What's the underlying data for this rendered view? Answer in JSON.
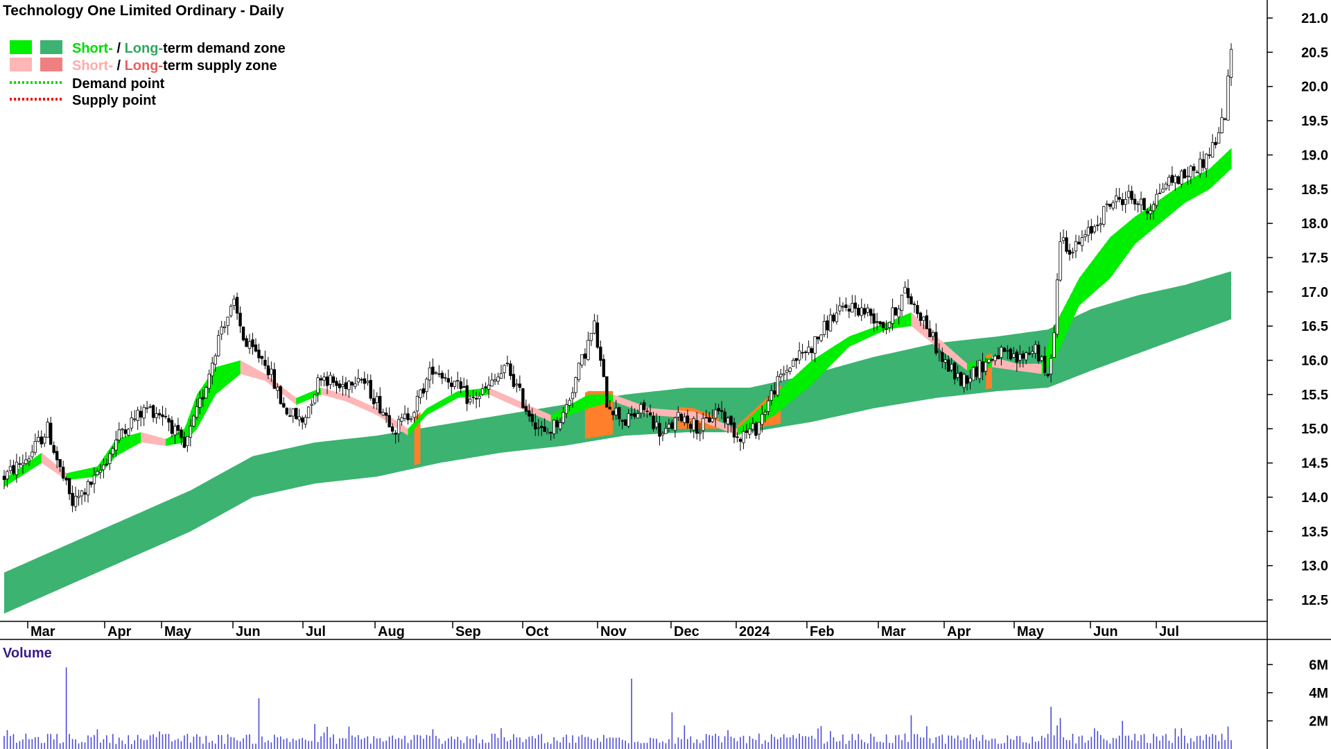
{
  "title": "Technology One Limited Ordinary - Daily",
  "legend": {
    "demand_zone": {
      "short": "Short-",
      "sep": " / ",
      "long": "Long-",
      "rest": "term demand zone"
    },
    "supply_zone": {
      "short": "Short-",
      "sep": " / ",
      "long": "Long-",
      "rest": "term supply zone"
    },
    "demand_point": "Demand point",
    "supply_point": "Supply point"
  },
  "colors": {
    "short_demand": "#00ee00",
    "long_demand": "#3cb371",
    "short_supply": "#ffb6b6",
    "long_supply": "#f08080",
    "supply_fill": "#ff7f2a",
    "volume_bar": "#4b4bd6",
    "demand_point": "#00dd00",
    "supply_point": "#ee0000"
  },
  "chart_data": {
    "type": "candlestick",
    "price_axis": {
      "min": 12.1,
      "max": 21.2,
      "ticks": [
        "21.0",
        "20.5",
        "20.0",
        "19.5",
        "19.0",
        "18.5",
        "18.0",
        "17.5",
        "17.0",
        "16.5",
        "16.0",
        "15.5",
        "15.0",
        "14.5",
        "14.0",
        "13.5",
        "13.0",
        "12.5"
      ]
    },
    "month_labels": [
      "Mar",
      "Apr",
      "May",
      "Jun",
      "Jul",
      "Aug",
      "Sep",
      "Oct",
      "Nov",
      "Dec",
      "2024",
      "Feb",
      "Mar",
      "Apr",
      "May",
      "Jun",
      "Jul"
    ],
    "volume_label": "Volume",
    "volume_axis": {
      "max": 7.0,
      "ticks": [
        "6M",
        "4M",
        "2M"
      ]
    },
    "price_anchors": [
      [
        0,
        14.3
      ],
      [
        8,
        14.6
      ],
      [
        14,
        15.0
      ],
      [
        18,
        14.4
      ],
      [
        22,
        13.9
      ],
      [
        30,
        14.3
      ],
      [
        38,
        15.0
      ],
      [
        46,
        15.3
      ],
      [
        52,
        15.2
      ],
      [
        58,
        14.7
      ],
      [
        64,
        15.5
      ],
      [
        70,
        16.5
      ],
      [
        74,
        16.8
      ],
      [
        78,
        16.2
      ],
      [
        84,
        16.0
      ],
      [
        90,
        15.3
      ],
      [
        96,
        15.1
      ],
      [
        102,
        15.8
      ],
      [
        108,
        15.6
      ],
      [
        114,
        15.8
      ],
      [
        120,
        15.4
      ],
      [
        126,
        15.0
      ],
      [
        132,
        15.3
      ],
      [
        138,
        15.9
      ],
      [
        144,
        15.7
      ],
      [
        150,
        15.4
      ],
      [
        156,
        15.6
      ],
      [
        162,
        15.9
      ],
      [
        168,
        15.3
      ],
      [
        174,
        14.9
      ],
      [
        180,
        15.2
      ],
      [
        186,
        16.0
      ],
      [
        190,
        16.5
      ],
      [
        194,
        15.4
      ],
      [
        200,
        15.1
      ],
      [
        206,
        15.3
      ],
      [
        212,
        14.9
      ],
      [
        218,
        15.2
      ],
      [
        224,
        15.0
      ],
      [
        230,
        15.3
      ],
      [
        236,
        14.9
      ],
      [
        242,
        15.0
      ],
      [
        248,
        15.6
      ],
      [
        254,
        16.0
      ],
      [
        260,
        16.2
      ],
      [
        266,
        16.6
      ],
      [
        272,
        16.8
      ],
      [
        278,
        16.7
      ],
      [
        284,
        16.5
      ],
      [
        290,
        17.0
      ],
      [
        296,
        16.6
      ],
      [
        302,
        16.0
      ],
      [
        308,
        15.7
      ],
      [
        314,
        15.9
      ],
      [
        320,
        16.1
      ],
      [
        326,
        16.0
      ],
      [
        332,
        16.2
      ],
      [
        336,
        15.7
      ],
      [
        338,
        16.5
      ],
      [
        340,
        17.8
      ],
      [
        344,
        17.6
      ],
      [
        350,
        17.9
      ],
      [
        356,
        18.3
      ],
      [
        362,
        18.4
      ],
      [
        368,
        18.2
      ],
      [
        374,
        18.6
      ],
      [
        380,
        18.7
      ],
      [
        386,
        18.9
      ],
      [
        390,
        19.2
      ],
      [
        393,
        19.6
      ],
      [
        395,
        20.5
      ]
    ],
    "short_demand_band": [
      [
        0,
        14.27,
        14.15
      ],
      [
        12,
        14.65,
        14.5
      ],
      [
        20,
        14.35,
        14.25
      ],
      [
        30,
        14.45,
        14.3
      ],
      [
        36,
        14.85,
        14.6
      ],
      [
        44,
        14.95,
        14.8
      ],
      [
        52,
        14.85,
        14.75
      ],
      [
        58,
        15.0,
        14.8
      ],
      [
        62,
        15.5,
        15.0
      ],
      [
        68,
        15.9,
        15.5
      ],
      [
        76,
        16.0,
        15.8
      ],
      [
        84,
        15.8,
        15.7
      ],
      [
        94,
        15.45,
        15.35
      ],
      [
        102,
        15.6,
        15.5
      ],
      [
        110,
        15.5,
        15.4
      ],
      [
        120,
        15.3,
        15.2
      ],
      [
        130,
        15.0,
        14.9
      ],
      [
        136,
        15.3,
        15.2
      ],
      [
        146,
        15.55,
        15.45
      ],
      [
        156,
        15.6,
        15.5
      ],
      [
        166,
        15.4,
        15.3
      ],
      [
        176,
        15.2,
        15.1
      ],
      [
        188,
        15.5,
        15.3
      ],
      [
        196,
        15.5,
        15.4
      ],
      [
        208,
        15.3,
        15.2
      ],
      [
        222,
        15.25,
        15.15
      ],
      [
        236,
        15.0,
        14.9
      ],
      [
        248,
        15.5,
        15.2
      ],
      [
        260,
        16.0,
        15.65
      ],
      [
        272,
        16.35,
        16.2
      ],
      [
        284,
        16.55,
        16.45
      ],
      [
        292,
        16.7,
        16.5
      ],
      [
        300,
        16.35,
        16.2
      ],
      [
        310,
        15.95,
        15.85
      ],
      [
        318,
        16.05,
        15.9
      ],
      [
        326,
        15.95,
        15.85
      ],
      [
        334,
        15.95,
        15.8
      ],
      [
        338,
        16.5,
        16.0
      ],
      [
        346,
        17.2,
        16.8
      ],
      [
        356,
        17.8,
        17.2
      ],
      [
        364,
        18.1,
        17.7
      ],
      [
        372,
        18.35,
        18.0
      ],
      [
        380,
        18.6,
        18.3
      ],
      [
        388,
        18.8,
        18.5
      ],
      [
        395,
        19.1,
        18.8
      ]
    ],
    "long_demand_band": [
      [
        0,
        12.9,
        12.3
      ],
      [
        20,
        13.3,
        12.7
      ],
      [
        40,
        13.7,
        13.1
      ],
      [
        60,
        14.1,
        13.5
      ],
      [
        80,
        14.6,
        14.0
      ],
      [
        100,
        14.8,
        14.2
      ],
      [
        120,
        14.9,
        14.3
      ],
      [
        140,
        15.05,
        14.5
      ],
      [
        160,
        15.2,
        14.65
      ],
      [
        180,
        15.35,
        14.75
      ],
      [
        200,
        15.5,
        14.9
      ],
      [
        220,
        15.6,
        14.95
      ],
      [
        240,
        15.6,
        14.95
      ],
      [
        260,
        15.8,
        15.1
      ],
      [
        280,
        16.05,
        15.3
      ],
      [
        300,
        16.25,
        15.45
      ],
      [
        320,
        16.35,
        15.55
      ],
      [
        336,
        16.45,
        15.6
      ],
      [
        350,
        16.75,
        15.85
      ],
      [
        365,
        16.95,
        16.1
      ],
      [
        380,
        17.1,
        16.35
      ],
      [
        395,
        17.3,
        16.6
      ]
    ],
    "supply_segments": [
      [
        132,
        134
      ],
      [
        187,
        196
      ],
      [
        217,
        230
      ],
      [
        236,
        250
      ],
      [
        316,
        318
      ]
    ],
    "volume_spikes": [
      [
        20,
        5.8
      ],
      [
        82,
        3.6
      ],
      [
        202,
        5.0
      ],
      [
        215,
        2.6
      ],
      [
        292,
        2.4
      ],
      [
        337,
        3.0
      ],
      [
        340,
        2.2
      ],
      [
        360,
        2.0
      ],
      [
        394,
        1.6
      ]
    ]
  }
}
